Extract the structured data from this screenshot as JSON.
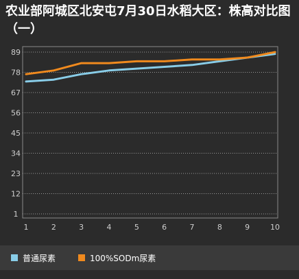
{
  "chart_data": {
    "type": "line",
    "title": "农业部阿城区北安屯7月30日水稻大区：株高对比图（一）",
    "x": [
      1,
      2,
      3,
      4,
      5,
      6,
      7,
      8,
      9,
      10
    ],
    "xlabel": "",
    "ylabel": "",
    "ylim": [
      1,
      89
    ],
    "yticks": [
      1,
      12,
      23,
      34,
      45,
      56,
      67,
      78,
      89
    ],
    "grid": true,
    "legend": "bottom-left",
    "series": [
      {
        "name": "普通尿素",
        "color": "#89cde8",
        "values": [
          73,
          74,
          77,
          79,
          80,
          81,
          82,
          84,
          86,
          88
        ]
      },
      {
        "name": "100%SODm尿素",
        "color": "#f08a1e",
        "values": [
          77,
          79,
          83,
          83,
          84,
          84,
          85,
          85,
          86,
          89
        ]
      }
    ]
  }
}
